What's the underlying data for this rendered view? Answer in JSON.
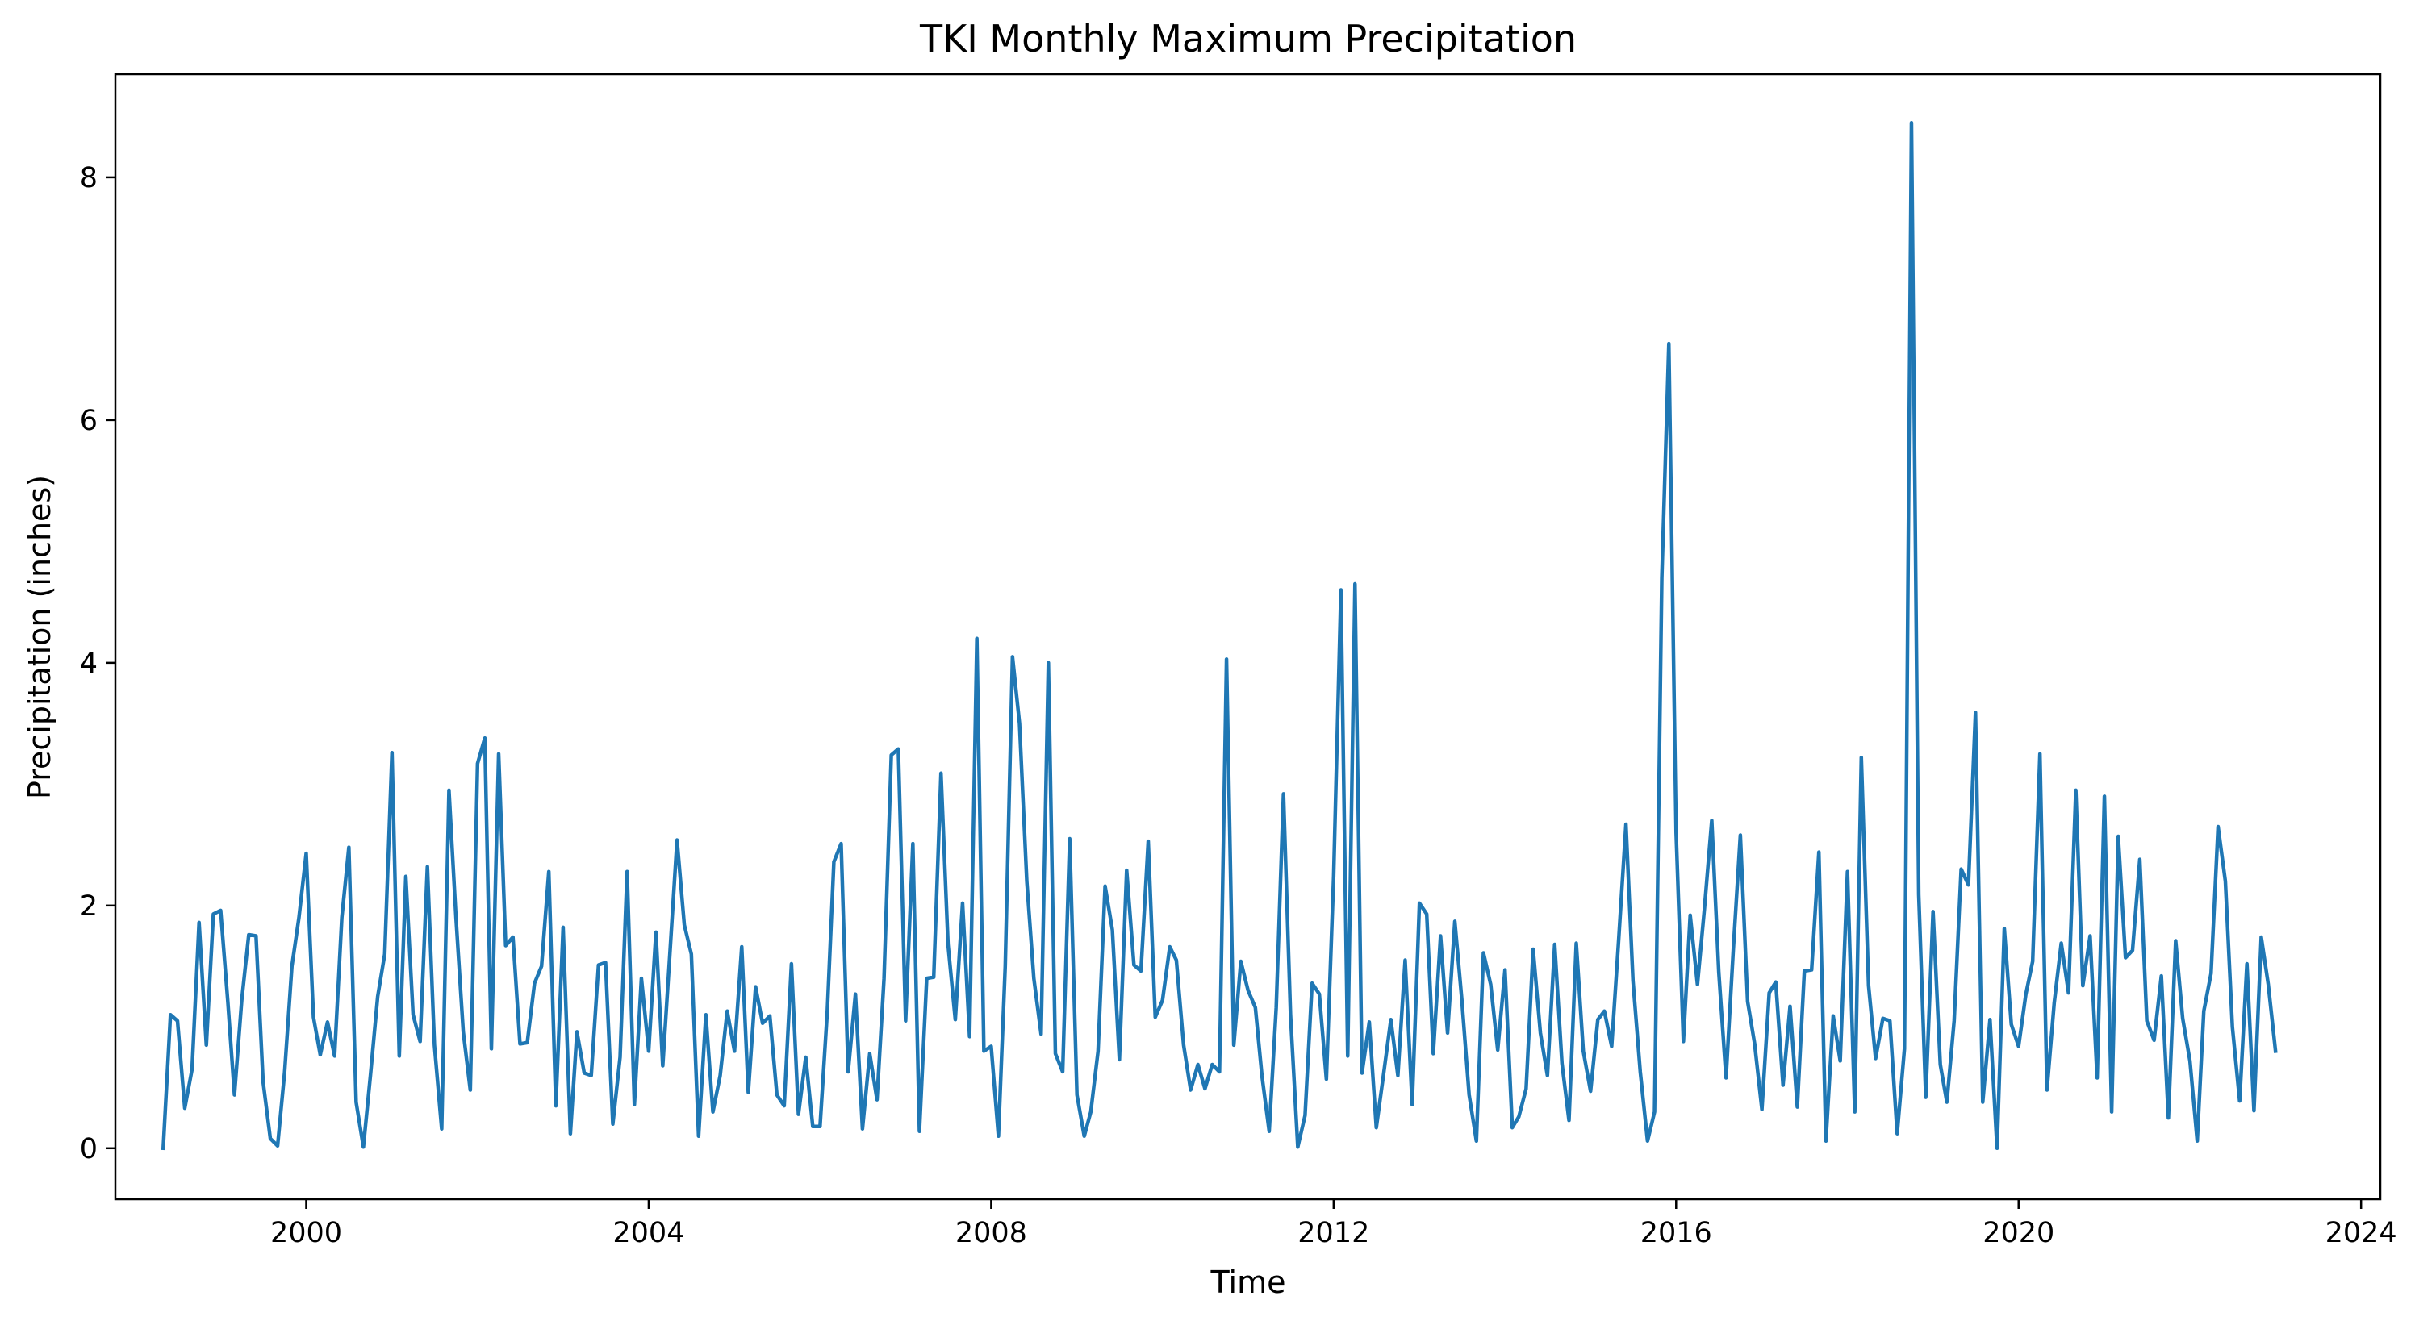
{
  "chart_data": {
    "type": "line",
    "title": "TKI Monthly Maximum Precipitation",
    "xlabel": "Time",
    "ylabel": "Precipitation (inches)",
    "x_tick_labels": [
      "2000",
      "2004",
      "2008",
      "2012",
      "2016",
      "2020",
      "2024"
    ],
    "y_tick_labels": [
      "0",
      "2",
      "4",
      "6",
      "8"
    ],
    "xlim": [
      "1997-10-09",
      "2024-03-23"
    ],
    "ylim": [
      -0.42,
      8.85
    ],
    "grid": false,
    "legend": "none",
    "series": [
      {
        "color": "#1f77b4",
        "start": "1998-05",
        "frequency": "monthly",
        "values": [
          0.0,
          1.1,
          1.05,
          0.33,
          0.65,
          1.86,
          0.85,
          1.93,
          1.96,
          1.2,
          0.44,
          1.22,
          1.76,
          1.75,
          0.55,
          0.08,
          0.02,
          0.63,
          1.5,
          1.9,
          2.43,
          1.08,
          0.77,
          1.04,
          0.76,
          1.9,
          2.48,
          0.38,
          0.01,
          0.6,
          1.25,
          1.6,
          3.26,
          0.76,
          2.24,
          1.1,
          0.88,
          2.32,
          0.85,
          0.16,
          2.95,
          1.9,
          0.96,
          0.48,
          3.17,
          3.38,
          0.82,
          3.25,
          1.67,
          1.74,
          0.86,
          0.87,
          1.36,
          1.5,
          2.28,
          0.35,
          1.82,
          0.12,
          0.96,
          0.62,
          0.6,
          1.51,
          1.53,
          0.2,
          0.75,
          2.28,
          0.36,
          1.4,
          0.8,
          1.78,
          0.68,
          1.62,
          2.54,
          1.84,
          1.6,
          0.1,
          1.1,
          0.3,
          0.6,
          1.13,
          0.8,
          1.66,
          0.46,
          1.33,
          1.03,
          1.09,
          0.44,
          0.35,
          1.52,
          0.28,
          0.75,
          0.18,
          0.18,
          1.13,
          2.36,
          2.51,
          0.63,
          1.27,
          0.16,
          0.78,
          0.4,
          1.4,
          3.24,
          3.29,
          1.05,
          2.51,
          0.14,
          1.4,
          1.41,
          3.09,
          1.68,
          1.06,
          2.02,
          0.92,
          4.2,
          0.8,
          0.84,
          0.1,
          1.5,
          4.05,
          3.5,
          2.2,
          1.4,
          0.94,
          4.0,
          0.78,
          0.63,
          2.55,
          0.44,
          0.1,
          0.3,
          0.8,
          2.16,
          1.8,
          0.73,
          2.29,
          1.51,
          1.46,
          2.53,
          1.08,
          1.22,
          1.66,
          1.55,
          0.85,
          0.48,
          0.69,
          0.49,
          0.69,
          0.63,
          4.03,
          0.85,
          1.54,
          1.3,
          1.16,
          0.6,
          0.14,
          1.16,
          2.92,
          1.1,
          0.01,
          0.27,
          1.36,
          1.27,
          0.57,
          2.24,
          4.6,
          0.76,
          4.65,
          0.62,
          1.04,
          0.17,
          0.61,
          1.06,
          0.6,
          1.55,
          0.36,
          2.02,
          1.93,
          0.78,
          1.75,
          0.95,
          1.87,
          1.22,
          0.44,
          0.06,
          1.61,
          1.35,
          0.81,
          1.47,
          0.17,
          0.26,
          0.49,
          1.64,
          0.95,
          0.6,
          1.68,
          0.7,
          0.23,
          1.69,
          0.8,
          0.47,
          1.06,
          1.13,
          0.84,
          1.72,
          2.67,
          1.38,
          0.63,
          0.06,
          0.3,
          4.7,
          6.63,
          2.6,
          0.88,
          1.92,
          1.35,
          1.98,
          2.7,
          1.45,
          0.58,
          1.64,
          2.58,
          1.21,
          0.86,
          0.32,
          1.28,
          1.37,
          0.52,
          1.17,
          0.34,
          1.46,
          1.47,
          2.44,
          0.06,
          1.09,
          0.72,
          2.28,
          0.3,
          3.22,
          1.34,
          0.74,
          1.07,
          1.05,
          0.12,
          0.82,
          8.45,
          2.09,
          0.42,
          1.95,
          0.69,
          0.38,
          1.05,
          2.3,
          2.17,
          3.59,
          0.38,
          1.06,
          0.0,
          1.81,
          1.02,
          0.84,
          1.27,
          1.54,
          3.25,
          0.48,
          1.2,
          1.69,
          1.28,
          2.95,
          1.34,
          1.75,
          0.58,
          2.9,
          0.3,
          2.57,
          1.57,
          1.63,
          2.38,
          1.05,
          0.89,
          1.42,
          0.25,
          1.71,
          1.07,
          0.72,
          0.06,
          1.13,
          1.44,
          2.65,
          2.2,
          1.0,
          0.39,
          1.52,
          0.31,
          1.74,
          1.35,
          0.8
        ]
      }
    ]
  }
}
